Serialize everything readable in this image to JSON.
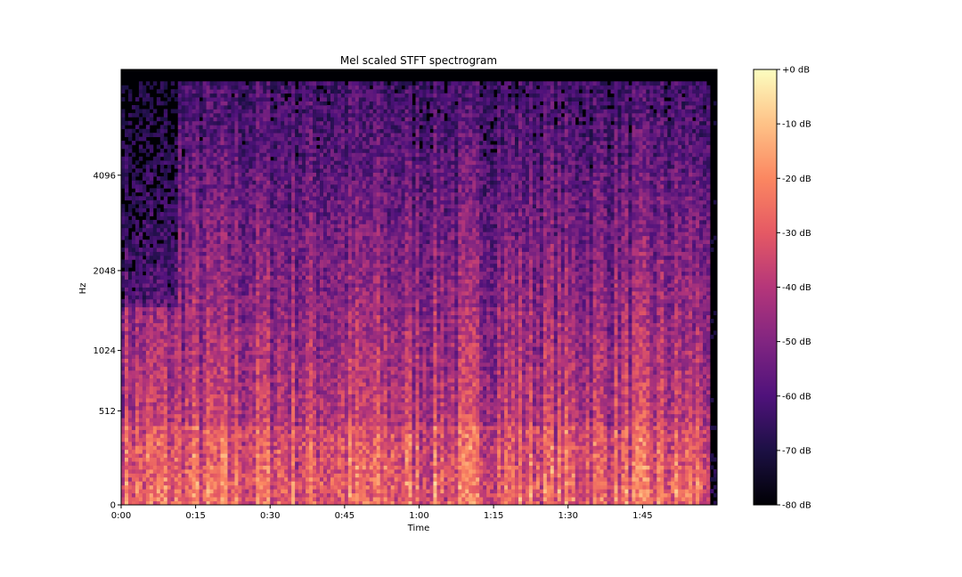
{
  "chart_data": {
    "type": "heatmap",
    "title": "Mel scaled STFT spectrogram",
    "xlabel": "Time",
    "ylabel": "Hz",
    "x_ticks": [
      {
        "value": 0,
        "label": "0:00"
      },
      {
        "value": 15,
        "label": "0:15"
      },
      {
        "value": 30,
        "label": "0:30"
      },
      {
        "value": 45,
        "label": "0:45"
      },
      {
        "value": 60,
        "label": "1:00"
      },
      {
        "value": 75,
        "label": "1:15"
      },
      {
        "value": 90,
        "label": "1:30"
      },
      {
        "value": 105,
        "label": "1:45"
      }
    ],
    "xlim": [
      0,
      120
    ],
    "y_scale": "mel",
    "y_ticks": [
      {
        "value": 0,
        "label": "0"
      },
      {
        "value": 512,
        "label": "512"
      },
      {
        "value": 1024,
        "label": "1024"
      },
      {
        "value": 2048,
        "label": "2048"
      },
      {
        "value": 4096,
        "label": "4096"
      }
    ],
    "ylim": [
      0,
      8192
    ],
    "colormap": "magma",
    "colormap_stops": [
      "#000004",
      "#1c1044",
      "#4f127b",
      "#812581",
      "#b5367a",
      "#e55964",
      "#fb8761",
      "#fec287",
      "#fcfdbf"
    ],
    "colorbar": {
      "range": [
        -80,
        0
      ],
      "ticks": [
        {
          "value": 0,
          "label": "+0 dB"
        },
        {
          "value": -10,
          "label": "-10 dB"
        },
        {
          "value": -20,
          "label": "-20 dB"
        },
        {
          "value": -30,
          "label": "-30 dB"
        },
        {
          "value": -40,
          "label": "-40 dB"
        },
        {
          "value": -50,
          "label": "-50 dB"
        },
        {
          "value": -60,
          "label": "-60 dB"
        },
        {
          "value": -70,
          "label": "-70 dB"
        },
        {
          "value": -80,
          "label": "-80 dB"
        }
      ]
    },
    "grid": false,
    "legend": "none"
  }
}
